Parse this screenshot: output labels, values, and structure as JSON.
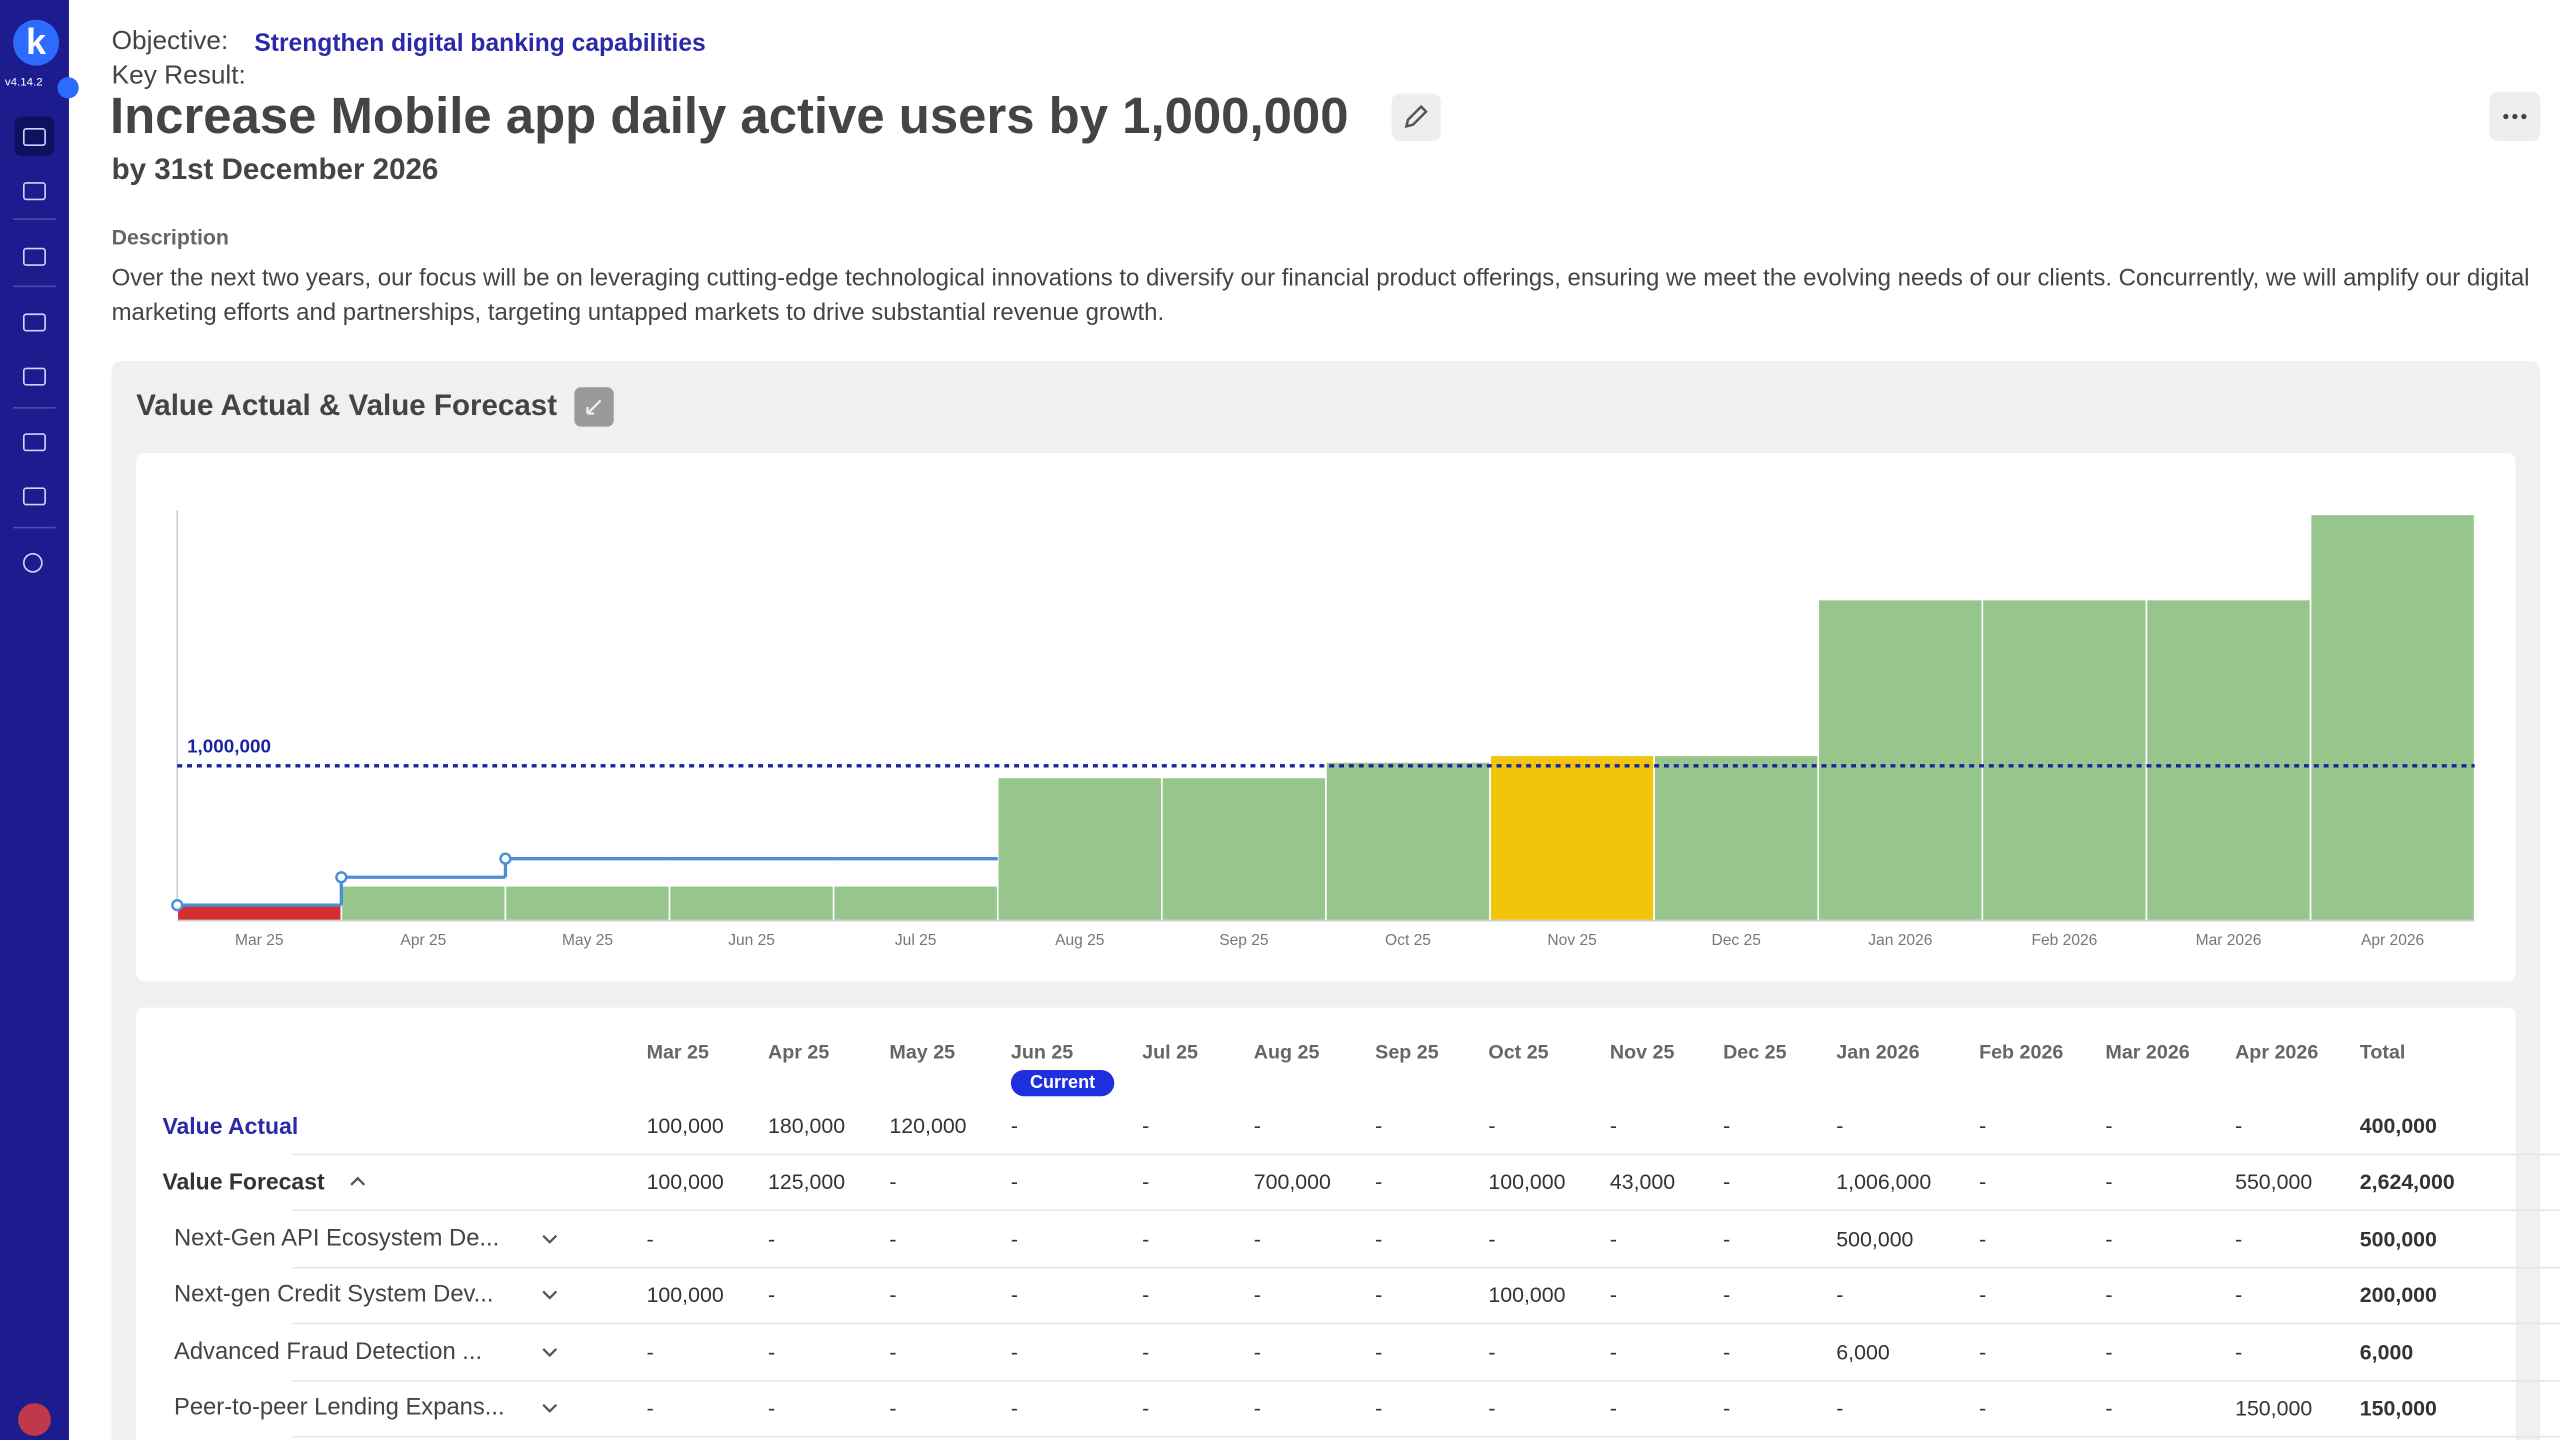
{
  "app": {
    "logo": "k",
    "version": "v4.14.2"
  },
  "header": {
    "objective_label": "Objective:",
    "objective": "Strengthen digital banking capabilities",
    "key_result_label": "Key Result:",
    "title": "Increase Mobile app daily active users by 1,000,000",
    "deadline": "by 31st December 2026"
  },
  "description": {
    "label": "Description",
    "text": "Over the next two years, our focus will be on leveraging cutting-edge technological innovations to diversify our financial product offerings, ensuring we meet the evolving needs of our clients. Concurrently, we will amplify our digital marketing efforts and partnerships, targeting untapped markets to drive substantial revenue growth."
  },
  "chart_data": {
    "type": "bar",
    "title": "Value Actual & Value Forecast",
    "categories": [
      "Mar 25",
      "Apr 25",
      "May 25",
      "Jun 25",
      "Jul 25",
      "Aug 25",
      "Sep 25",
      "Oct 25",
      "Nov 25",
      "Dec 25",
      "Jan 2026",
      "Feb 2026",
      "Mar 2026",
      "Apr 2026"
    ],
    "values": [
      100000,
      225000,
      225000,
      225000,
      225000,
      925000,
      925000,
      1025000,
      1068000,
      1068000,
      2074000,
      2074000,
      2074000,
      2624000
    ],
    "colors": [
      "#d32f2f",
      "#96c68c",
      "#96c68c",
      "#96c68c",
      "#96c68c",
      "#96c68c",
      "#96c68c",
      "#96c68c",
      "#f2c40c",
      "#96c68c",
      "#96c68c",
      "#96c68c",
      "#96c68c",
      "#96c68c"
    ],
    "line_values": [
      100000,
      280000,
      400000,
      400000,
      400000,
      null,
      null,
      null,
      null,
      null,
      null,
      null,
      null,
      null
    ],
    "line_color": "#4a90d9",
    "target_line": {
      "value": 1000000,
      "label": "1,000,000",
      "color": "#1a23a0"
    },
    "ylim": [
      0,
      2650000
    ],
    "grid": false
  },
  "table": {
    "header": [
      "Mar 25",
      "Apr 25",
      "May 25",
      "Jun 25",
      "Jul 25",
      "Aug 25",
      "Sep 25",
      "Oct 25",
      "Nov 25",
      "Dec 25",
      "Jan 2026",
      "Feb 2026",
      "Mar 2026",
      "Apr 2026",
      "Total"
    ],
    "badge": {
      "label": "Current",
      "column": 3
    },
    "rows": [
      {
        "label": "Value Actual",
        "cells": [
          "100,000",
          "180,000",
          "120,000",
          "-",
          "-",
          "-",
          "-",
          "-",
          "-",
          "-",
          "-",
          "-",
          "-",
          "-",
          "400,000"
        ]
      },
      {
        "label": "Value Forecast",
        "cells": [
          "100,000",
          "125,000",
          "-",
          "-",
          "-",
          "700,000",
          "-",
          "100,000",
          "43,000",
          "-",
          "1,006,000",
          "-",
          "-",
          "550,000",
          "2,624,000"
        ]
      },
      {
        "label": "Next-Gen API Ecosystem De...",
        "cells": [
          "-",
          "-",
          "-",
          "-",
          "-",
          "-",
          "-",
          "-",
          "-",
          "-",
          "500,000",
          "-",
          "-",
          "-",
          "500,000"
        ]
      },
      {
        "label": "Next-gen Credit System Dev...",
        "cells": [
          "100,000",
          "-",
          "-",
          "-",
          "-",
          "-",
          "-",
          "100,000",
          "-",
          "-",
          "-",
          "-",
          "-",
          "-",
          "200,000"
        ]
      },
      {
        "label": "Advanced Fraud Detection ...",
        "cells": [
          "-",
          "-",
          "-",
          "-",
          "-",
          "-",
          "-",
          "-",
          "-",
          "-",
          "6,000",
          "-",
          "-",
          "-",
          "6,000"
        ]
      },
      {
        "label": "Peer-to-peer Lending Expans...",
        "cells": [
          "-",
          "-",
          "-",
          "-",
          "-",
          "-",
          "-",
          "-",
          "-",
          "-",
          "-",
          "-",
          "-",
          "150,000",
          "150,000"
        ]
      }
    ]
  }
}
